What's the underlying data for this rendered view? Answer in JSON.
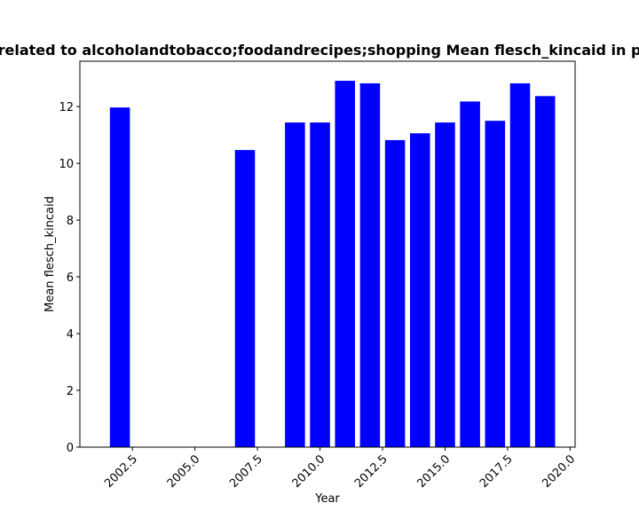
{
  "chart_data": {
    "type": "bar",
    "title": "related to alcoholandtobacco;foodandrecipes;shopping Mean flesch_kincaid in p",
    "xlabel": "Year",
    "ylabel": "Mean flesch_kincaid",
    "x": [
      2002,
      2007,
      2009,
      2010,
      2011,
      2012,
      2013,
      2014,
      2015,
      2016,
      2017,
      2018,
      2019
    ],
    "values": [
      11.97,
      10.47,
      11.44,
      11.44,
      12.91,
      12.82,
      10.82,
      11.06,
      11.44,
      12.18,
      11.5,
      12.82,
      12.37
    ],
    "xlim": [
      2000.4,
      2020.2
    ],
    "ylim": [
      0,
      13.6
    ],
    "xticks": [
      2002.5,
      2005.0,
      2007.5,
      2010.0,
      2012.5,
      2015.0,
      2017.5,
      2020.0
    ],
    "xtick_labels": [
      "2002.5",
      "2005.0",
      "2007.5",
      "2010.0",
      "2012.5",
      "2015.0",
      "2017.5",
      "2020.0"
    ],
    "yticks": [
      0,
      2,
      4,
      6,
      8,
      10,
      12
    ],
    "ytick_labels": [
      "0",
      "2",
      "4",
      "6",
      "8",
      "10",
      "12"
    ],
    "bar_color": "#0000ff",
    "grid": false,
    "legend": "none"
  }
}
